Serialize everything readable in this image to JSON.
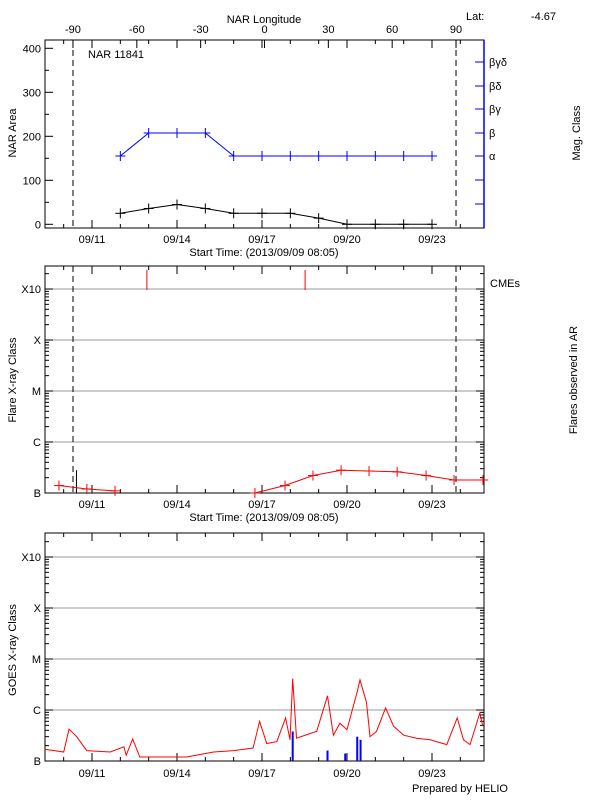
{
  "colors": {
    "area": "#000000",
    "mag_class": "#0000ff",
    "flare": "#ff0000",
    "cme": "#ff0000",
    "goes": "#ff0000",
    "goes_events": "#0000ff",
    "grid": "#999999"
  },
  "chart_data": [
    {
      "type": "line",
      "title": "NAR 11841",
      "lat_label": "Lat:",
      "lat_value": "-4.67",
      "xlabel": "Start Time: (2013/09/09 08:05)",
      "xrange": [
        "09/09 08:05",
        "09/24 20:00"
      ],
      "xticks": [
        "09/11",
        "09/14",
        "09/17",
        "09/20",
        "09/23"
      ],
      "top_axis": {
        "label": "NAR Longitude",
        "ticks": [
          -90,
          -60,
          -30,
          0,
          30,
          60,
          90
        ],
        "limb_lines": [
          -90,
          90
        ]
      },
      "ylabel": "NAR Area",
      "ylim": [
        0,
        400
      ],
      "yticks": [
        0,
        100,
        200,
        300,
        400
      ],
      "y2label": "Mag. Class",
      "y2ticks": [
        "α",
        "β",
        "βγ",
        "βδ",
        "βγδ"
      ],
      "series": [
        {
          "name": "NAR Area",
          "axis": "left",
          "x": [
            "09/12 00:00",
            "09/13 00:00",
            "09/14 00:00",
            "09/15 00:00",
            "09/16 00:00",
            "09/17 00:00",
            "09/18 00:00",
            "09/19 00:00",
            "09/20 00:00",
            "09/21 00:00",
            "09/22 00:00",
            "09/23 00:00"
          ],
          "values": [
            25,
            36,
            45,
            36,
            25,
            25,
            25,
            14,
            0,
            0,
            0,
            0
          ]
        },
        {
          "name": "Mag. Class",
          "axis": "right",
          "x": [
            "09/12 00:00",
            "09/13 00:00",
            "09/14 00:00",
            "09/15 00:00",
            "09/16 00:00",
            "09/17 00:00",
            "09/18 00:00",
            "09/19 00:00",
            "09/20 00:00",
            "09/21 00:00",
            "09/22 00:00",
            "09/23 00:00"
          ],
          "values": [
            "α",
            "β",
            "β",
            "β",
            "α",
            "α",
            "α",
            "α",
            "α",
            "α",
            "α",
            "α"
          ]
        }
      ]
    },
    {
      "type": "line",
      "xlabel": "Start Time: (2013/09/09 08:05)",
      "xticks": [
        "09/11",
        "09/14",
        "09/17",
        "09/20",
        "09/23"
      ],
      "ylabel": "Flare X-ray Class",
      "y2label": "Flares observed in AR",
      "yscale": "log",
      "ylim": [
        1e-07,
        0.003
      ],
      "yticks": [
        "B",
        "C",
        "M",
        "X",
        "X10"
      ],
      "grid": true,
      "cme_label": "CMEs",
      "cmes": [
        "09/12 22:30",
        "09/18 12:30"
      ],
      "flares": [
        {
          "x": "09/10 10:50",
          "flux": 2.8e-07
        }
      ],
      "series": [
        {
          "x": [
            "09/09 20:00",
            "09/10 19:40",
            "09/11 19:30",
            "09/16 18:00",
            "09/17 19:30",
            "09/18 19:10",
            "09/19 19:00",
            "09/20 18:40",
            "09/21 18:30",
            "09/22 19:00",
            "09/23 18:40",
            "09/24 19:10"
          ],
          "values": [
            1.4e-07,
            1.2e-07,
            1.1e-07,
            1e-07,
            1.4e-07,
            2.2e-07,
            2.8e-07,
            2.7e-07,
            2.6e-07,
            2.2e-07,
            1.8e-07,
            1.8e-07
          ]
        }
      ]
    },
    {
      "type": "line",
      "xticks": [
        "09/11",
        "09/14",
        "09/17",
        "09/20",
        "09/23"
      ],
      "ylabel": "GOES X-ray Class",
      "yscale": "log",
      "ylim": [
        1e-07,
        0.003
      ],
      "yticks": [
        "B",
        "C",
        "M",
        "X",
        "X10"
      ],
      "grid": true,
      "series": [
        {
          "x": [
            "09/09 08:05",
            "09/10 00:00",
            "09/10 04:30",
            "09/10 11:00",
            "09/10 19:30",
            "09/11 15:30",
            "09/12 03:00",
            "09/12 05:00",
            "09/12 10:30",
            "09/12 16:30",
            "09/13 15:30",
            "09/14 08:00",
            "09/15 07:00",
            "09/16 00:00",
            "09/16 16:30",
            "09/16 22:00",
            "09/17 04:00",
            "09/17 12:30",
            "09/17 20:00",
            "09/17 23:45",
            "09/18 02:00",
            "09/18 05:15",
            "09/18 14:00",
            "09/18 22:20",
            "09/19 07:30",
            "09/19 12:30",
            "09/19 18:00",
            "09/20 00:00",
            "09/20 08:40",
            "09/20 11:00",
            "09/20 16:30",
            "09/20 19:30",
            "09/21 01:00",
            "09/21 08:40",
            "09/21 15:30",
            "09/22 00:00",
            "09/22 11:00",
            "09/22 22:20",
            "09/23 12:30",
            "09/23 21:20",
            "09/24 02:40",
            "09/24 08:10",
            "09/24 16:30",
            "09/24 19:00"
          ],
          "values": [
            1.7e-07,
            1.5e-07,
            4.2e-07,
            3e-07,
            1.6e-07,
            1.5e-07,
            1.9e-07,
            1.3e-07,
            2.7e-07,
            1.2e-07,
            1.2e-07,
            1.2e-07,
            1.5e-07,
            1.6e-07,
            1.8e-07,
            6e-07,
            2.2e-07,
            2.4e-07,
            7e-07,
            2.6e-07,
            4.1e-06,
            2.8e-07,
            3.3e-07,
            3.8e-07,
            1.9e-06,
            3.2e-07,
            5.5e-07,
            4.1e-07,
            2.3e-06,
            3.9e-06,
            1.4e-06,
            3e-07,
            3.8e-07,
            1.1e-06,
            4.8e-07,
            3.2e-07,
            2.8e-07,
            2.6e-07,
            2.1e-07,
            7e-07,
            2.6e-07,
            2.1e-07,
            8.7e-07,
            4.8e-07
          ]
        }
      ],
      "events": [
        {
          "x": "09/18 02:00",
          "flux": 3.8e-07
        },
        {
          "x": "09/19 07:30",
          "flux": 1.6e-07
        },
        {
          "x": "09/19 22:30",
          "flux": 1.4e-07
        },
        {
          "x": "09/20 08:40",
          "flux": 3e-07
        },
        {
          "x": "09/20 11:30",
          "flux": 2.6e-07
        }
      ],
      "footer": "Prepared by HELIO"
    }
  ]
}
